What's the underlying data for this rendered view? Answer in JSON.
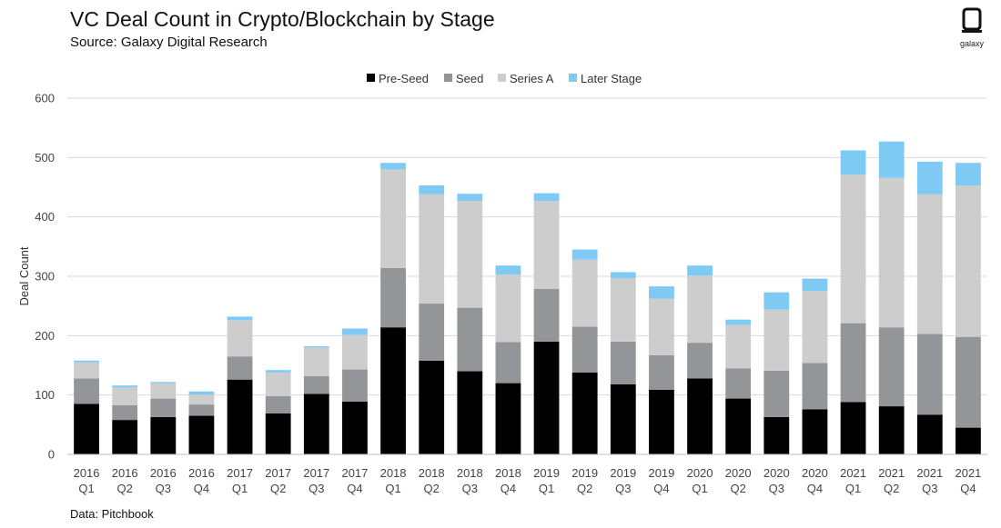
{
  "header": {
    "title": "VC Deal Count in Crypto/Blockchain by Stage",
    "subtitle": "Source: Galaxy Digital Research"
  },
  "footer": {
    "note": "Data: Pitchbook"
  },
  "brand": {
    "logo_text": "galaxy"
  },
  "chart_data": {
    "type": "bar",
    "stacked": true,
    "title": "VC Deal Count in Crypto/Blockchain by Stage",
    "xlabel": "",
    "ylabel": "Deal Count",
    "ylim": [
      0,
      600
    ],
    "yticks": [
      0,
      100,
      200,
      300,
      400,
      500,
      600
    ],
    "grid": true,
    "legend_position": "top-center",
    "categories": [
      [
        "2016",
        "Q1"
      ],
      [
        "2016",
        "Q2"
      ],
      [
        "2016",
        "Q3"
      ],
      [
        "2016",
        "Q4"
      ],
      [
        "2017",
        "Q1"
      ],
      [
        "2017",
        "Q2"
      ],
      [
        "2017",
        "Q3"
      ],
      [
        "2017",
        "Q4"
      ],
      [
        "2018",
        "Q1"
      ],
      [
        "2018",
        "Q2"
      ],
      [
        "2018",
        "Q3"
      ],
      [
        "2018",
        "Q4"
      ],
      [
        "2019",
        "Q1"
      ],
      [
        "2019",
        "Q2"
      ],
      [
        "2019",
        "Q3"
      ],
      [
        "2019",
        "Q4"
      ],
      [
        "2020",
        "Q1"
      ],
      [
        "2020",
        "Q2"
      ],
      [
        "2020",
        "Q3"
      ],
      [
        "2020",
        "Q4"
      ],
      [
        "2021",
        "Q1"
      ],
      [
        "2021",
        "Q2"
      ],
      [
        "2021",
        "Q3"
      ],
      [
        "2021",
        "Q4"
      ]
    ],
    "series": [
      {
        "name": "Pre-Seed",
        "color": "#000000",
        "values": [
          85,
          58,
          63,
          65,
          126,
          69,
          102,
          89,
          214,
          158,
          140,
          120,
          190,
          138,
          118,
          109,
          128,
          94,
          63,
          76,
          88,
          81,
          67,
          45
        ]
      },
      {
        "name": "Seed",
        "color": "#939598",
        "values": [
          43,
          25,
          31,
          19,
          39,
          29,
          30,
          54,
          100,
          96,
          107,
          69,
          89,
          77,
          72,
          58,
          60,
          51,
          78,
          78,
          133,
          133,
          136,
          153
        ]
      },
      {
        "name": "Series A",
        "color": "#cdcdcd",
        "values": [
          27,
          30,
          26,
          17,
          61,
          40,
          48,
          58,
          166,
          184,
          180,
          114,
          148,
          113,
          107,
          95,
          113,
          73,
          103,
          121,
          250,
          252,
          235,
          255
        ]
      },
      {
        "name": "Later Stage",
        "color": "#7ecaf4",
        "values": [
          3,
          3,
          2,
          5,
          6,
          4,
          2,
          11,
          11,
          15,
          12,
          15,
          13,
          17,
          10,
          21,
          17,
          9,
          29,
          21,
          41,
          61,
          55,
          38
        ]
      }
    ]
  }
}
